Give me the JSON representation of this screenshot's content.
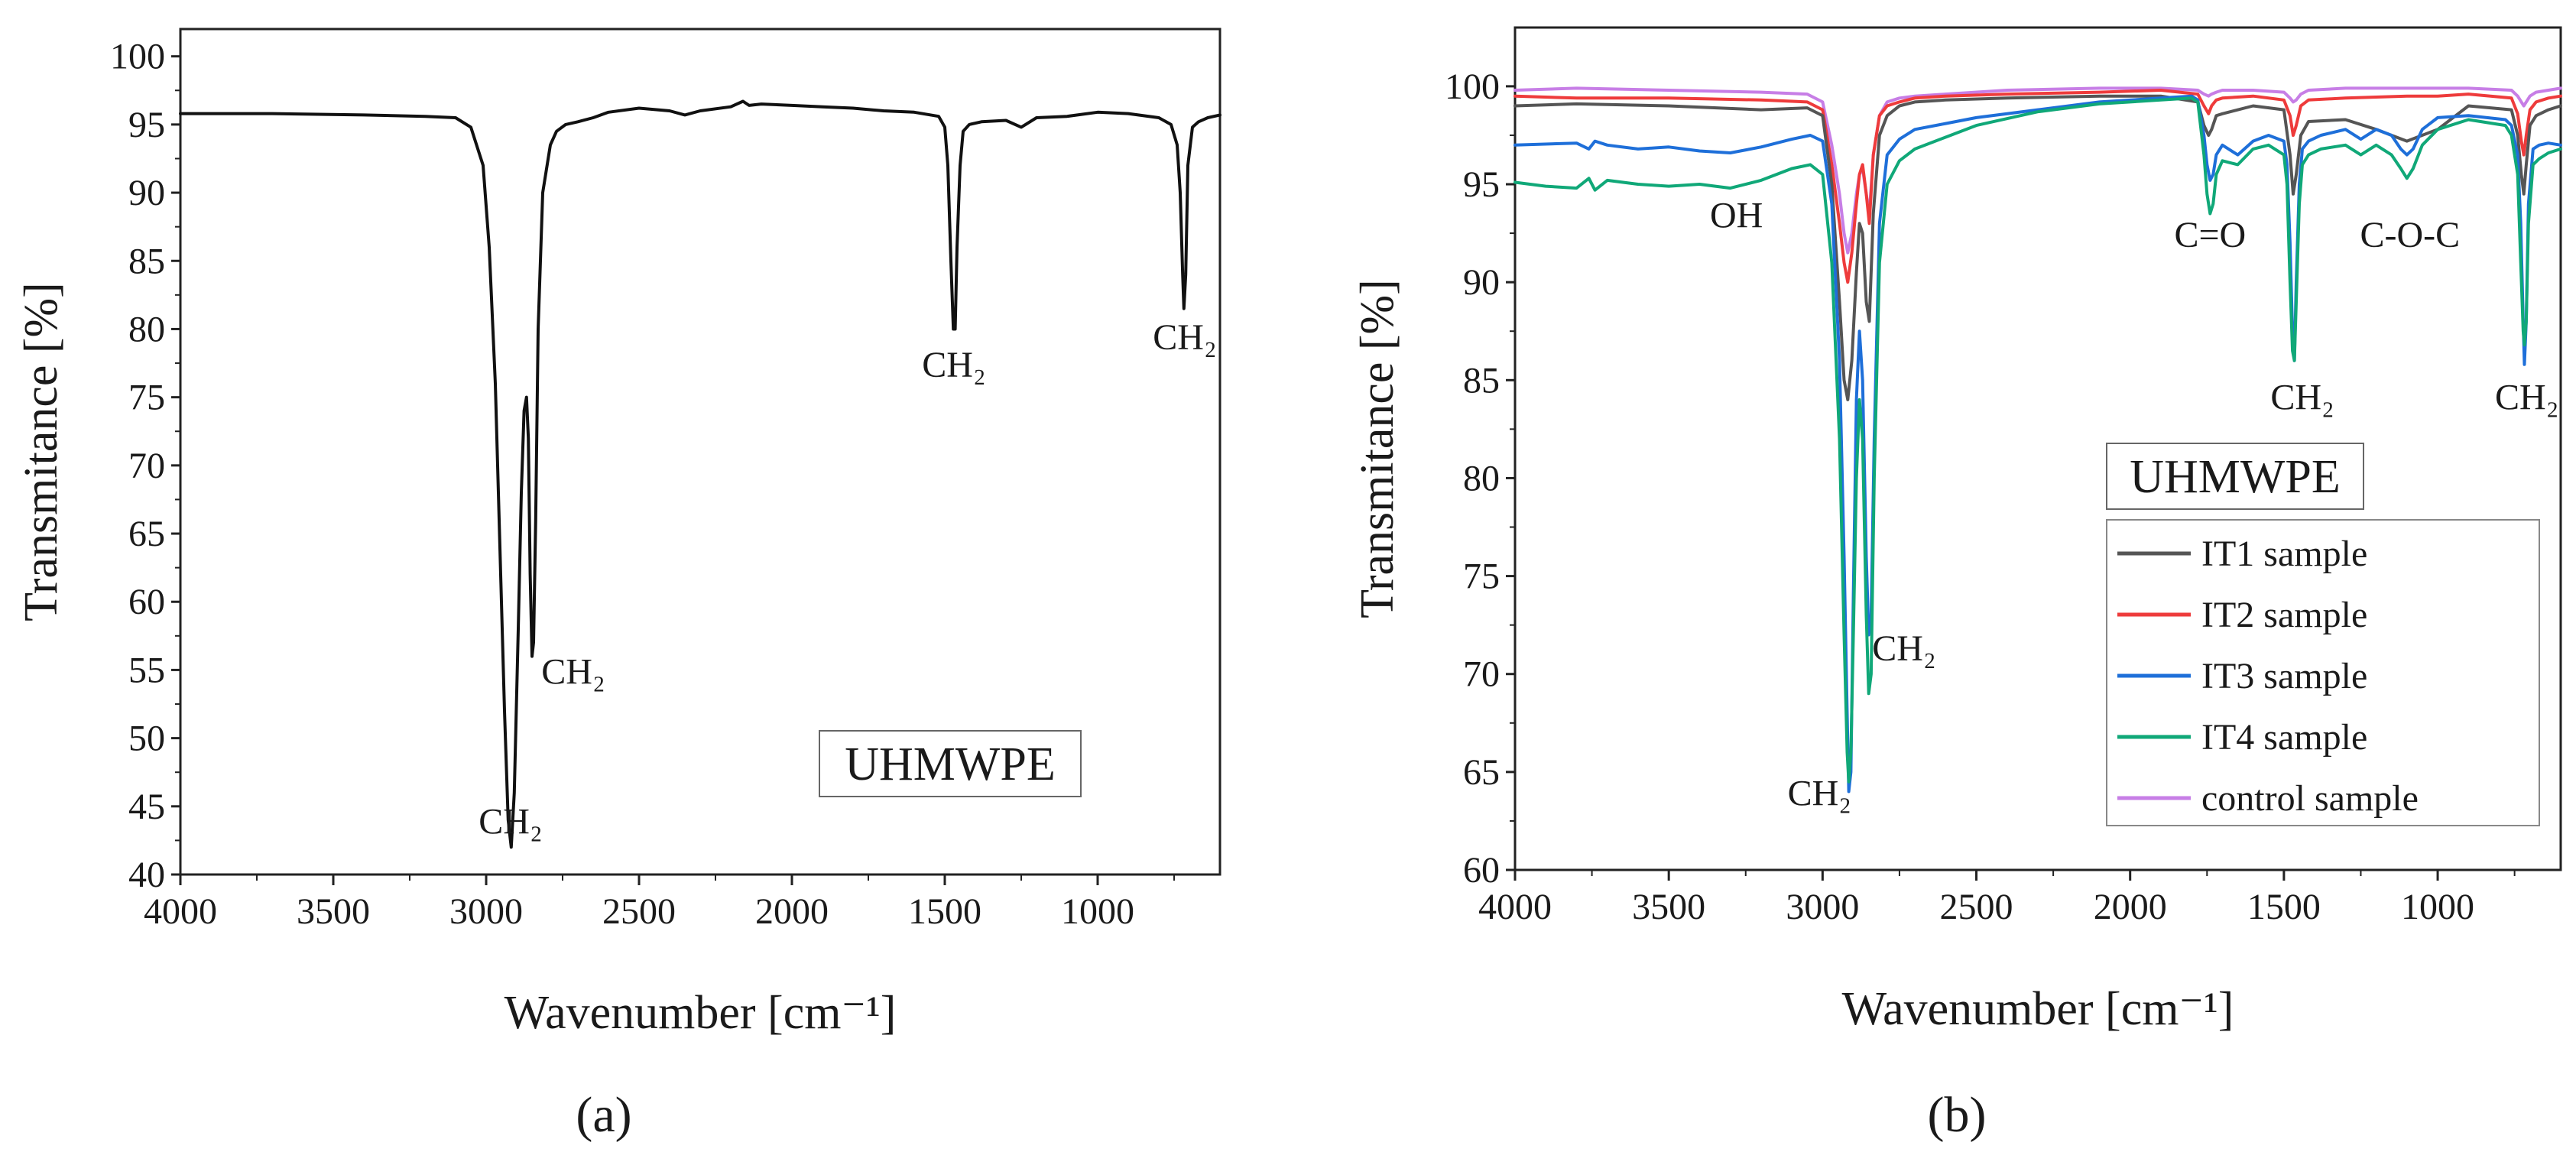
{
  "figure": {
    "panel_a_label": "(a)",
    "panel_b_label": "(b)"
  },
  "chart_data": [
    {
      "id": "a",
      "type": "line",
      "box_label": "UHMWPE",
      "xlabel": "Wavenumber [cm⁻¹]",
      "ylabel": "Transmitance [%]",
      "xlim": [
        4000,
        600
      ],
      "ylim": [
        40,
        102
      ],
      "xticks": [
        4000,
        3500,
        3000,
        2500,
        2000,
        1500,
        1000
      ],
      "yticks": [
        40,
        45,
        50,
        55,
        60,
        65,
        70,
        75,
        80,
        85,
        90,
        95,
        100
      ],
      "annotations": [
        {
          "text": "CH₂",
          "x": 2920,
          "y": 43
        },
        {
          "text": "CH₂",
          "x": 2715,
          "y": 54
        },
        {
          "text": "CH₂",
          "x": 1470,
          "y": 76.5
        },
        {
          "text": "CH₂",
          "x": 715,
          "y": 78.5
        }
      ],
      "series": [
        {
          "name": "UHMWPE",
          "color": "#111111",
          "x": [
            4000,
            3700,
            3400,
            3200,
            3100,
            3050,
            3010,
            2990,
            2970,
            2955,
            2940,
            2928,
            2918,
            2908,
            2895,
            2885,
            2876,
            2868,
            2862,
            2856,
            2850,
            2845,
            2838,
            2830,
            2815,
            2790,
            2770,
            2740,
            2700,
            2650,
            2600,
            2500,
            2400,
            2350,
            2300,
            2200,
            2160,
            2140,
            2100,
            2000,
            1900,
            1800,
            1700,
            1600,
            1520,
            1500,
            1490,
            1480,
            1472,
            1466,
            1460,
            1450,
            1440,
            1420,
            1380,
            1300,
            1250,
            1200,
            1100,
            1000,
            900,
            800,
            760,
            740,
            730,
            722,
            718,
            712,
            705,
            690,
            670,
            640,
            600
          ],
          "y": [
            95.8,
            95.8,
            95.7,
            95.6,
            95.5,
            94.8,
            92,
            86,
            76,
            64,
            52,
            44,
            42,
            46,
            58,
            68,
            74,
            75,
            72,
            62,
            56,
            57,
            66,
            80,
            90,
            93.5,
            94.5,
            95,
            95.2,
            95.5,
            95.9,
            96.2,
            96,
            95.7,
            96,
            96.3,
            96.7,
            96.4,
            96.5,
            96.4,
            96.3,
            96.2,
            96,
            95.9,
            95.6,
            94.8,
            92,
            85,
            80,
            80,
            86,
            92,
            94.5,
            95,
            95.2,
            95.3,
            94.8,
            95.5,
            95.6,
            95.9,
            95.8,
            95.5,
            95,
            93.5,
            90,
            84,
            81.5,
            84,
            92,
            94.8,
            95.2,
            95.5,
            95.7
          ]
        }
      ]
    },
    {
      "id": "b",
      "type": "line",
      "box_label": "UHMWPE",
      "xlabel": "Wavenumber [cm⁻¹]",
      "ylabel": "Transmitance [%]",
      "xlim": [
        4000,
        600
      ],
      "ylim": [
        60,
        103
      ],
      "xticks": [
        4000,
        3500,
        3000,
        2500,
        2000,
        1500,
        1000
      ],
      "yticks": [
        60,
        65,
        70,
        75,
        80,
        85,
        90,
        95,
        100
      ],
      "annotations": [
        {
          "text": "OH",
          "x": 3280,
          "y": 92.8
        },
        {
          "text": "C=O",
          "x": 1740,
          "y": 91.8
        },
        {
          "text": "C-O-C",
          "x": 1090,
          "y": 91.8
        },
        {
          "text": "CH₂",
          "x": 1440,
          "y": 83.5
        },
        {
          "text": "CH₂",
          "x": 710,
          "y": 83.5
        },
        {
          "text": "CH₂",
          "x": 2735,
          "y": 70.7
        },
        {
          "text": "CH₂",
          "x": 3010,
          "y": 63.3
        }
      ],
      "legend": {
        "position": "bottom-right",
        "entries": [
          {
            "label": "IT1 sample",
            "color": "#555555"
          },
          {
            "label": "IT2 sample",
            "color": "#ee3b3b"
          },
          {
            "label": "IT3 sample",
            "color": "#1e6fd9"
          },
          {
            "label": "IT4 sample",
            "color": "#10a878"
          },
          {
            "label": "control sample",
            "color": "#c77ee6"
          }
        ]
      },
      "series": [
        {
          "name": "control sample",
          "color": "#c77ee6",
          "x": [
            4000,
            3800,
            3500,
            3200,
            3050,
            3000,
            2970,
            2945,
            2930,
            2918,
            2905,
            2890,
            2880,
            2870,
            2858,
            2848,
            2835,
            2815,
            2790,
            2750,
            2700,
            2600,
            2400,
            2100,
            1900,
            1780,
            1760,
            1745,
            1735,
            1720,
            1700,
            1600,
            1500,
            1480,
            1470,
            1460,
            1445,
            1420,
            1300,
            1100,
            1000,
            900,
            760,
            740,
            728,
            720,
            712,
            700,
            680,
            640,
            600
          ],
          "y": [
            99.8,
            99.9,
            99.8,
            99.7,
            99.6,
            99.2,
            97,
            94.5,
            92.5,
            91.5,
            92.5,
            94.5,
            95.5,
            95.8,
            94.5,
            93.5,
            96.5,
            98.5,
            99.2,
            99.4,
            99.5,
            99.6,
            99.8,
            99.9,
            99.9,
            99.8,
            99.6,
            99.5,
            99.6,
            99.7,
            99.8,
            99.8,
            99.7,
            99.4,
            99.2,
            99.3,
            99.6,
            99.8,
            99.9,
            99.9,
            99.9,
            99.9,
            99.8,
            99.5,
            99.2,
            99.0,
            99.2,
            99.5,
            99.7,
            99.8,
            99.9
          ]
        },
        {
          "name": "IT2 sample",
          "color": "#ee3b3b",
          "x": [
            4000,
            3800,
            3500,
            3200,
            3050,
            3000,
            2970,
            2945,
            2930,
            2918,
            2905,
            2890,
            2880,
            2870,
            2858,
            2848,
            2835,
            2815,
            2790,
            2750,
            2700,
            2600,
            2400,
            2100,
            1900,
            1780,
            1760,
            1745,
            1735,
            1720,
            1700,
            1600,
            1500,
            1480,
            1470,
            1460,
            1445,
            1420,
            1300,
            1100,
            1000,
            900,
            760,
            740,
            728,
            720,
            712,
            700,
            680,
            640,
            600
          ],
          "y": [
            99.5,
            99.4,
            99.4,
            99.3,
            99.2,
            98.8,
            96,
            93,
            91,
            90,
            91.5,
            94,
            95.5,
            96,
            94.5,
            93,
            96.5,
            98.5,
            99,
            99.2,
            99.4,
            99.5,
            99.6,
            99.7,
            99.8,
            99.6,
            99,
            98.6,
            99,
            99.3,
            99.4,
            99.5,
            99.3,
            98.5,
            97.5,
            98,
            99,
            99.3,
            99.4,
            99.5,
            99.5,
            99.6,
            99.4,
            98.6,
            97.2,
            96.5,
            97.5,
            98.8,
            99.2,
            99.4,
            99.5
          ]
        },
        {
          "name": "IT1 sample",
          "color": "#555555",
          "x": [
            4000,
            3800,
            3500,
            3200,
            3050,
            3000,
            2970,
            2945,
            2930,
            2918,
            2905,
            2890,
            2880,
            2870,
            2858,
            2848,
            2835,
            2815,
            2790,
            2750,
            2700,
            2600,
            2400,
            2100,
            1900,
            1780,
            1760,
            1745,
            1735,
            1720,
            1700,
            1600,
            1500,
            1480,
            1470,
            1460,
            1445,
            1420,
            1300,
            1200,
            1150,
            1100,
            1000,
            900,
            760,
            740,
            728,
            720,
            712,
            700,
            680,
            640,
            600
          ],
          "y": [
            99,
            99.1,
            99,
            98.8,
            98.9,
            98.5,
            95,
            89,
            85,
            84,
            86,
            90.5,
            93,
            92.5,
            89,
            88,
            93.5,
            97.5,
            98.5,
            99,
            99.2,
            99.3,
            99.4,
            99.5,
            99.5,
            99.2,
            98,
            97.5,
            97.8,
            98.5,
            98.6,
            99,
            98.8,
            96.5,
            94.5,
            95.5,
            97.5,
            98.2,
            98.3,
            97.8,
            97.5,
            97.2,
            97.8,
            99,
            98.8,
            97.5,
            95.5,
            94.5,
            96,
            98,
            98.5,
            98.8,
            99
          ]
        },
        {
          "name": "IT3 sample",
          "color": "#1e6fd9",
          "x": [
            4000,
            3800,
            3760,
            3740,
            3700,
            3600,
            3500,
            3400,
            3300,
            3200,
            3100,
            3040,
            3000,
            2970,
            2945,
            2930,
            2920,
            2915,
            2908,
            2900,
            2890,
            2880,
            2870,
            2858,
            2850,
            2842,
            2832,
            2815,
            2790,
            2750,
            2700,
            2600,
            2500,
            2300,
            2100,
            1900,
            1800,
            1780,
            1760,
            1750,
            1740,
            1730,
            1720,
            1700,
            1650,
            1600,
            1550,
            1500,
            1490,
            1480,
            1472,
            1466,
            1460,
            1450,
            1440,
            1420,
            1380,
            1300,
            1250,
            1200,
            1150,
            1120,
            1100,
            1080,
            1050,
            1000,
            900,
            780,
            760,
            740,
            730,
            722,
            718,
            712,
            705,
            690,
            670,
            640,
            600
          ],
          "y": [
            97,
            97.1,
            96.8,
            97.2,
            97,
            96.8,
            96.9,
            96.7,
            96.6,
            96.9,
            97.3,
            97.5,
            97.2,
            94,
            86,
            76,
            68,
            64,
            65,
            74,
            84,
            87.5,
            85,
            76,
            72,
            73,
            82,
            93,
            96.5,
            97.3,
            97.8,
            98.1,
            98.4,
            98.8,
            99.2,
            99.4,
            99.5,
            99.3,
            97.5,
            96,
            95.2,
            95.5,
            96.5,
            97,
            96.5,
            97.2,
            97.5,
            97.2,
            96,
            92,
            87.5,
            86,
            90,
            95,
            96.8,
            97.2,
            97.5,
            97.8,
            97.3,
            97.8,
            97.5,
            96.8,
            96.5,
            96.8,
            97.8,
            98.4,
            98.5,
            98.3,
            98,
            96.5,
            93,
            88,
            85.8,
            88,
            94,
            96.8,
            97,
            97.1,
            97
          ]
        },
        {
          "name": "IT4 sample",
          "color": "#10a878",
          "x": [
            4000,
            3900,
            3800,
            3760,
            3740,
            3700,
            3600,
            3500,
            3400,
            3300,
            3200,
            3100,
            3040,
            3000,
            2970,
            2945,
            2930,
            2920,
            2915,
            2908,
            2900,
            2890,
            2880,
            2870,
            2858,
            2850,
            2842,
            2832,
            2815,
            2790,
            2750,
            2700,
            2600,
            2500,
            2300,
            2100,
            1900,
            1800,
            1780,
            1760,
            1750,
            1740,
            1730,
            1720,
            1700,
            1650,
            1600,
            1550,
            1500,
            1490,
            1480,
            1472,
            1466,
            1460,
            1450,
            1440,
            1420,
            1380,
            1300,
            1250,
            1200,
            1150,
            1120,
            1100,
            1080,
            1050,
            1000,
            900,
            780,
            760,
            740,
            730,
            722,
            718,
            712,
            705,
            690,
            670,
            640,
            600
          ],
          "y": [
            95.1,
            94.9,
            94.8,
            95.3,
            94.7,
            95.2,
            95,
            94.9,
            95,
            94.8,
            95.2,
            95.8,
            96,
            95.5,
            91,
            82,
            72,
            66,
            64.5,
            66,
            72,
            80,
            84,
            82,
            73,
            69,
            70,
            80,
            91,
            95,
            96.2,
            96.8,
            97.4,
            98,
            98.7,
            99.1,
            99.3,
            99.4,
            99.2,
            96.5,
            94.5,
            93.5,
            94,
            95.5,
            96.2,
            96,
            96.8,
            97,
            96.5,
            95,
            90,
            86.5,
            86,
            89,
            94,
            96,
            96.5,
            96.8,
            97,
            96.5,
            97,
            96.5,
            95.8,
            95.3,
            95.8,
            97,
            97.8,
            98.3,
            98,
            97.5,
            95.5,
            91,
            87.5,
            86.8,
            88,
            93,
            96,
            96.3,
            96.6,
            96.8
          ]
        }
      ]
    }
  ]
}
